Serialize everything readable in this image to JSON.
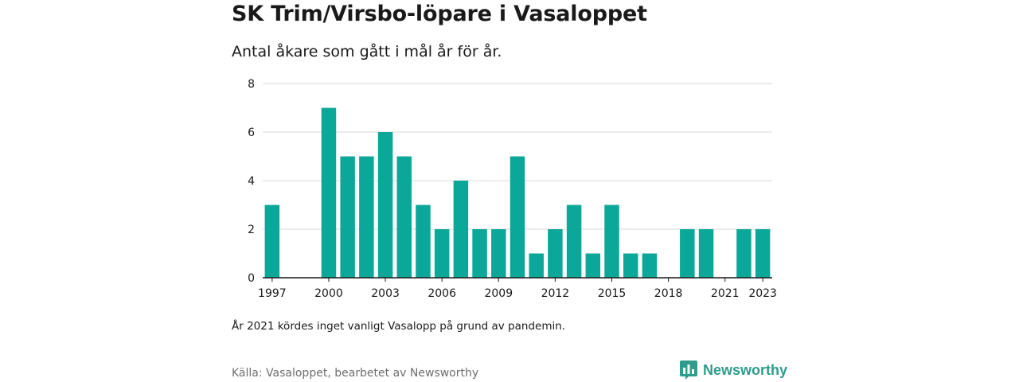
{
  "title": "SK Trim/Virsbo-löpare i Vasaloppet",
  "subtitle": "Antal åkare som gått i mål år för år.",
  "note": "År 2021 kördes inget vanligt Vasalopp på grund av pandemin.",
  "source": "Källa: Vasaloppet, bearbetet av Newsworthy",
  "brand": {
    "name": "Newsworthy",
    "color": "#2e9c8c",
    "icon": "newsworthy-chart-bubble-icon"
  },
  "colors": {
    "bar": "#0ba89a",
    "grid": "#d9d9d9",
    "axis": "#1a1a1a"
  },
  "chart_data": {
    "type": "bar",
    "title": "SK Trim/Virsbo-löpare i Vasaloppet",
    "subtitle": "Antal åkare som gått i mål år för år.",
    "xlabel": "",
    "ylabel": "",
    "categories": [
      1997,
      1998,
      1999,
      2000,
      2001,
      2002,
      2003,
      2004,
      2005,
      2006,
      2007,
      2008,
      2009,
      2010,
      2011,
      2012,
      2013,
      2014,
      2015,
      2016,
      2017,
      2018,
      2019,
      2020,
      2021,
      2022,
      2023
    ],
    "values": [
      3,
      0,
      0,
      7,
      5,
      5,
      6,
      5,
      3,
      2,
      4,
      2,
      2,
      5,
      1,
      2,
      3,
      1,
      3,
      1,
      1,
      0,
      2,
      2,
      0,
      2,
      2
    ],
    "x_tick_labels": [
      "1997",
      "2000",
      "2003",
      "2006",
      "2009",
      "2012",
      "2015",
      "2018",
      "2021",
      "2023"
    ],
    "y_ticks": [
      0,
      2,
      4,
      6,
      8
    ],
    "ylim": [
      0,
      8
    ],
    "grid": "horizontal",
    "legend": "none"
  }
}
